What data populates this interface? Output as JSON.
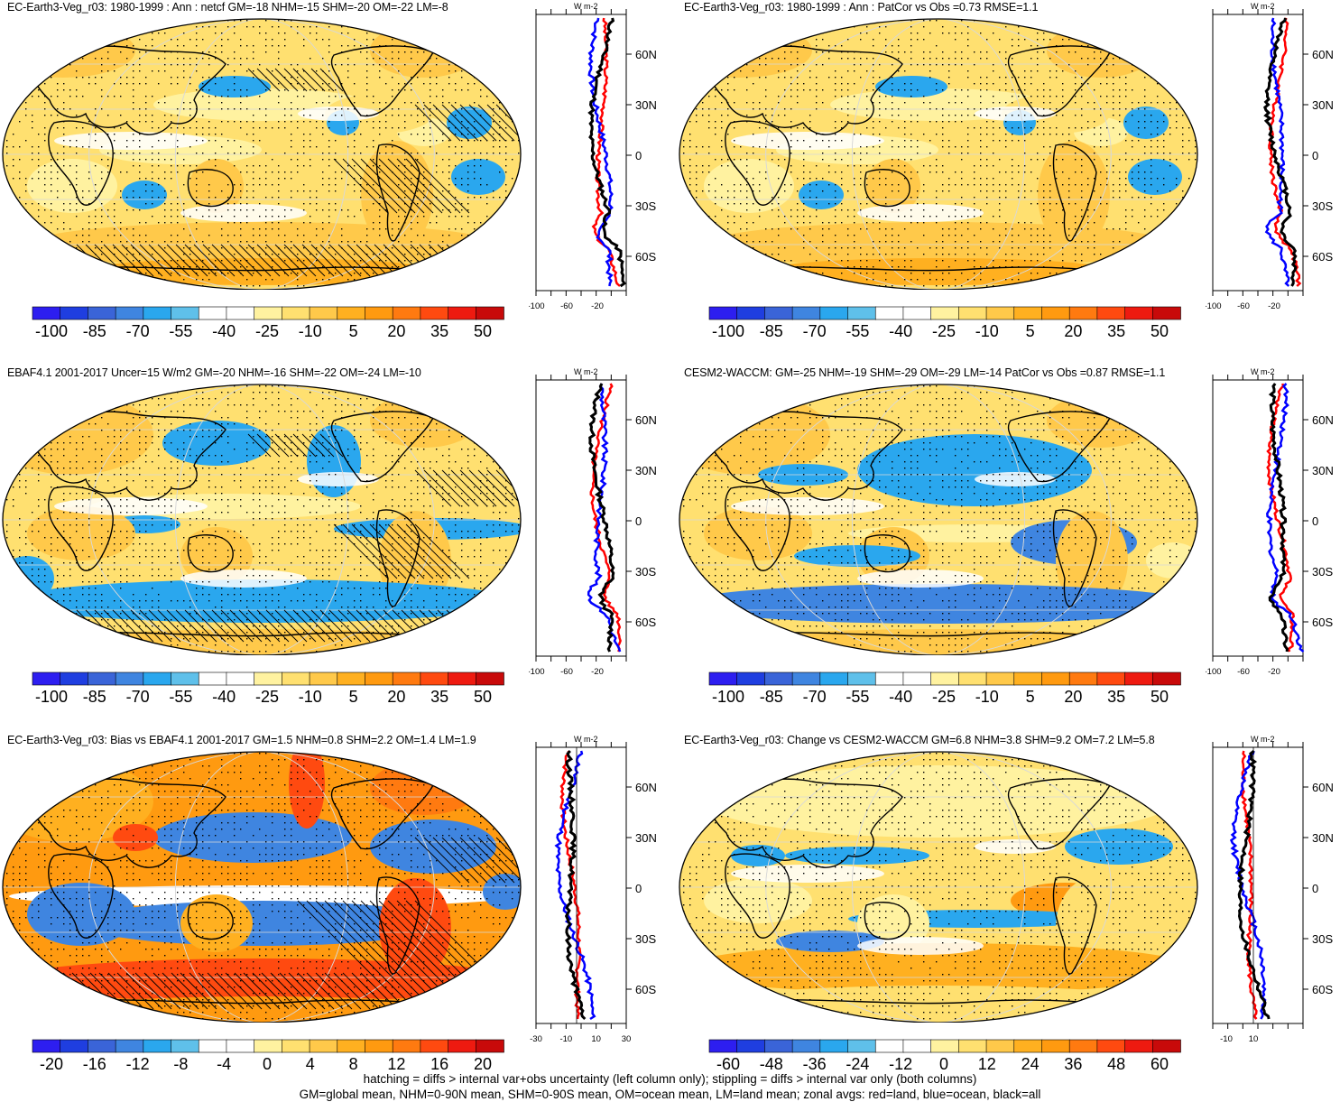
{
  "panels": [
    {
      "title": "EC-Earth3-Veg_r03: 1980-1999 : Ann : netcf GM=-18 NHM=-15 SHM=-20 OM=-22 LM=-8",
      "colorbar": [
        "-100",
        "-85",
        "-70",
        "-55",
        "-40",
        "-25",
        "-10",
        "5",
        "20",
        "35",
        "50"
      ],
      "zonal_xticks": [
        "-100",
        "-60",
        "-20"
      ],
      "zonal_lat": [
        "60N",
        "30N",
        "0",
        "30S",
        "60S"
      ],
      "unit": "W m-2",
      "hatching": true
    },
    {
      "title": "EC-Earth3-Veg_r03: 1980-1999 : Ann : PatCor vs Obs =0.73 RMSE=1.1",
      "colorbar": [
        "-100",
        "-85",
        "-70",
        "-55",
        "-40",
        "-25",
        "-10",
        "5",
        "20",
        "35",
        "50"
      ],
      "zonal_xticks": [
        "-100",
        "-60",
        "-20"
      ],
      "zonal_lat": [
        "60N",
        "30N",
        "0",
        "30S",
        "60S"
      ],
      "unit": "W m-2",
      "hatching": false
    },
    {
      "title": "EBAF4.1 2001-2017 Uncer=15 W/m2 GM=-20 NHM=-16 SHM=-22 OM=-24 LM=-10",
      "colorbar": [
        "-100",
        "-85",
        "-70",
        "-55",
        "-40",
        "-25",
        "-10",
        "5",
        "20",
        "35",
        "50"
      ],
      "zonal_xticks": [
        "-100",
        "-60",
        "-20"
      ],
      "zonal_lat": [
        "60N",
        "30N",
        "0",
        "30S",
        "60S"
      ],
      "unit": "W m-2",
      "hatching": true
    },
    {
      "title": "CESM2-WACCM: GM=-25 NHM=-19 SHM=-29 OM=-29 LM=-14 PatCor vs Obs =0.87 RMSE=1.1",
      "colorbar": [
        "-100",
        "-85",
        "-70",
        "-55",
        "-40",
        "-25",
        "-10",
        "5",
        "20",
        "35",
        "50"
      ],
      "zonal_xticks": [
        "-100",
        "-60",
        "-20"
      ],
      "zonal_lat": [
        "60N",
        "30N",
        "0",
        "30S",
        "60S"
      ],
      "unit": "W m-2",
      "hatching": false
    },
    {
      "title": "EC-Earth3-Veg_r03: Bias vs EBAF4.1 2001-2017 GM=1.5 NHM=0.8 SHM=2.2 OM=1.4 LM=1.9",
      "colorbar": [
        "-20",
        "-16",
        "-12",
        "-8",
        "-4",
        "0",
        "4",
        "8",
        "12",
        "16",
        "20"
      ],
      "zonal_xticks": [
        "-30",
        "-10",
        "10",
        "30"
      ],
      "zonal_lat": [
        "60N",
        "30N",
        "0",
        "30S",
        "60S"
      ],
      "unit": "W m-2",
      "hatching": true
    },
    {
      "title": "EC-Earth3-Veg_r03: Change vs CESM2-WACCM GM=6.8 NHM=3.8 SHM=9.2 OM=7.2 LM=5.8",
      "colorbar": [
        "-60",
        "-48",
        "-36",
        "-24",
        "-12",
        "0",
        "12",
        "24",
        "36",
        "48",
        "60"
      ],
      "zonal_xticks": [
        "-10",
        "10"
      ],
      "zonal_lat": [
        "60N",
        "30N",
        "0",
        "30S",
        "60S"
      ],
      "unit": "W m-2",
      "hatching": false
    }
  ],
  "footer": {
    "line1": "hatching = diffs > internal var+obs uncertainty (left column only); stippling = diffs > internal var only (both columns)",
    "line2": "GM=global mean, NHM=0-90N mean, SHM=0-90S mean, OM=ocean mean, LM=land mean; zonal avgs: red=land, blue=ocean, black=all"
  },
  "colors": {
    "land_line": "#ff0000",
    "ocean_line": "#0000ff",
    "all_line": "#000000",
    "palette": [
      "#2d1ef0",
      "#1f3ee0",
      "#3a64d8",
      "#3f85e0",
      "#2aa7ee",
      "#5fc0ea",
      "#ffffff",
      "#ffffff",
      "#fff2a0",
      "#ffe070",
      "#ffc94a",
      "#ffb020",
      "#ff9a10",
      "#ff7a10",
      "#ff4a10",
      "#ee1a10",
      "#c80a0a"
    ]
  }
}
